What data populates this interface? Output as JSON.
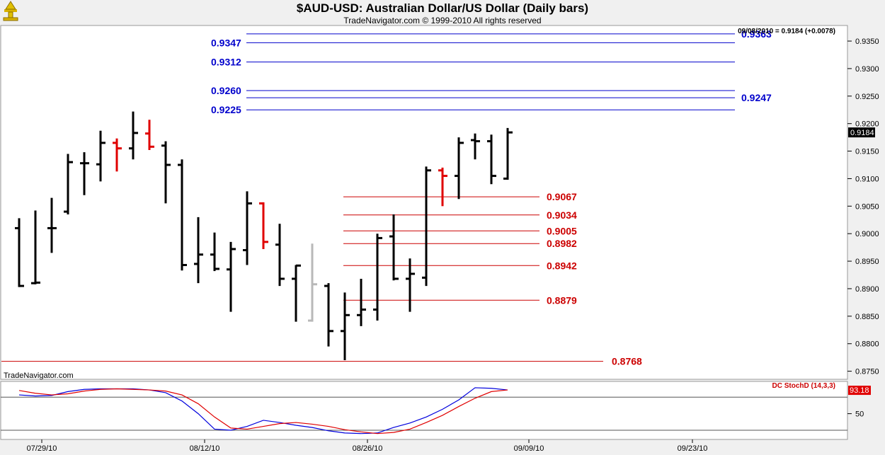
{
  "chart_data": {
    "type": "bar",
    "title": "$AUD-USD:  Australian Dollar/US Dollar  (Daily bars)",
    "subtitle": "TradeNavigator.com © 1999-2010 All rights reserved",
    "watermark": "TradeNavigator.com",
    "readout": "09/08/2010 = 0.9184 (+0.0078)",
    "last_price_label": "0.9184",
    "ylim": [
      0.8745,
      0.9375
    ],
    "yticks": [
      "0.8750",
      "0.8800",
      "0.8850",
      "0.8900",
      "0.8950",
      "0.9000",
      "0.9050",
      "0.9100",
      "0.9150",
      "0.9200",
      "0.9250",
      "0.9300",
      "0.9350"
    ],
    "xticks": [
      "07/29/10",
      "08/12/10",
      "08/26/10",
      "09/09/10",
      "09/23/10"
    ],
    "bars": [
      {
        "o": 0.901,
        "h": 0.9028,
        "l": 0.8903,
        "c": 0.8905,
        "color": "black"
      },
      {
        "o": 0.891,
        "h": 0.9042,
        "l": 0.8908,
        "c": 0.8911,
        "color": "black"
      },
      {
        "o": 0.901,
        "h": 0.9065,
        "l": 0.8965,
        "c": 0.901,
        "color": "black"
      },
      {
        "o": 0.904,
        "h": 0.9145,
        "l": 0.9035,
        "c": 0.913,
        "color": "black"
      },
      {
        "o": 0.9128,
        "h": 0.9148,
        "l": 0.907,
        "c": 0.9128,
        "color": "black"
      },
      {
        "o": 0.9126,
        "h": 0.9187,
        "l": 0.9095,
        "c": 0.9165,
        "color": "black"
      },
      {
        "o": 0.9165,
        "h": 0.9173,
        "l": 0.9113,
        "c": 0.9155,
        "color": "red"
      },
      {
        "o": 0.9155,
        "h": 0.9222,
        "l": 0.9135,
        "c": 0.9183,
        "color": "black"
      },
      {
        "o": 0.9182,
        "h": 0.9207,
        "l": 0.9152,
        "c": 0.9158,
        "color": "red"
      },
      {
        "o": 0.916,
        "h": 0.9168,
        "l": 0.9055,
        "c": 0.9125,
        "color": "black"
      },
      {
        "o": 0.9125,
        "h": 0.9135,
        "l": 0.8933,
        "c": 0.8943,
        "color": "black"
      },
      {
        "o": 0.8945,
        "h": 0.903,
        "l": 0.891,
        "c": 0.8962,
        "color": "black"
      },
      {
        "o": 0.8962,
        "h": 0.9002,
        "l": 0.8932,
        "c": 0.8936,
        "color": "black"
      },
      {
        "o": 0.8935,
        "h": 0.8985,
        "l": 0.8858,
        "c": 0.8972,
        "color": "black"
      },
      {
        "o": 0.897,
        "h": 0.9077,
        "l": 0.8943,
        "c": 0.9055,
        "color": "black"
      },
      {
        "o": 0.9055,
        "h": 0.9057,
        "l": 0.8972,
        "c": 0.8985,
        "color": "red"
      },
      {
        "o": 0.898,
        "h": 0.9018,
        "l": 0.8905,
        "c": 0.8918,
        "color": "black"
      },
      {
        "o": 0.8918,
        "h": 0.8943,
        "l": 0.884,
        "c": 0.8942,
        "color": "black"
      },
      {
        "o": 0.8842,
        "h": 0.8982,
        "l": 0.884,
        "c": 0.8908,
        "color": "gray"
      },
      {
        "o": 0.8905,
        "h": 0.891,
        "l": 0.8795,
        "c": 0.8823,
        "color": "black"
      },
      {
        "o": 0.8823,
        "h": 0.8893,
        "l": 0.877,
        "c": 0.8852,
        "color": "black"
      },
      {
        "o": 0.8852,
        "h": 0.8918,
        "l": 0.8832,
        "c": 0.8862,
        "color": "black"
      },
      {
        "o": 0.8862,
        "h": 0.9,
        "l": 0.8842,
        "c": 0.8992,
        "color": "black"
      },
      {
        "o": 0.8995,
        "h": 0.9035,
        "l": 0.8915,
        "c": 0.8918,
        "color": "black"
      },
      {
        "o": 0.8918,
        "h": 0.8955,
        "l": 0.8858,
        "c": 0.8927,
        "color": "black"
      },
      {
        "o": 0.892,
        "h": 0.9122,
        "l": 0.8905,
        "c": 0.9115,
        "color": "black"
      },
      {
        "o": 0.9115,
        "h": 0.912,
        "l": 0.905,
        "c": 0.9105,
        "color": "red"
      },
      {
        "o": 0.9105,
        "h": 0.9175,
        "l": 0.9063,
        "c": 0.9165,
        "color": "black"
      },
      {
        "o": 0.917,
        "h": 0.9182,
        "l": 0.9135,
        "c": 0.9168,
        "color": "black"
      },
      {
        "o": 0.9168,
        "h": 0.918,
        "l": 0.909,
        "c": 0.9105,
        "color": "black"
      },
      {
        "o": 0.91,
        "h": 0.9192,
        "l": 0.9098,
        "c": 0.9184,
        "color": "black"
      }
    ],
    "resistance_levels": [
      {
        "value": 0.9363,
        "label": "0.9363",
        "side": "right"
      },
      {
        "value": 0.9347,
        "label": "0.9347",
        "side": "left"
      },
      {
        "value": 0.9312,
        "label": "0.9312",
        "side": "left"
      },
      {
        "value": 0.926,
        "label": "0.9260",
        "side": "left"
      },
      {
        "value": 0.9247,
        "label": "0.9247",
        "side": "right"
      },
      {
        "value": 0.9225,
        "label": "0.9225",
        "side": "left"
      }
    ],
    "support_levels": [
      {
        "value": 0.9067,
        "label": "0.9067"
      },
      {
        "value": 0.9034,
        "label": "0.9034"
      },
      {
        "value": 0.9005,
        "label": "0.9005"
      },
      {
        "value": 0.8982,
        "label": "0.8982"
      },
      {
        "value": 0.8942,
        "label": "0.8942"
      },
      {
        "value": 0.8879,
        "label": "0.8879"
      },
      {
        "value": 0.8768,
        "label": "0.8768"
      }
    ],
    "indicator": {
      "name": "DC StochD (14,3,3)",
      "value_label": "93.18",
      "ylim": [
        0,
        100
      ],
      "yticks": [
        "50"
      ],
      "levels": [
        80,
        20
      ],
      "series": [
        {
          "color": "blue",
          "values": [
            84,
            82,
            83,
            90,
            94,
            95,
            95,
            95,
            93,
            88,
            73,
            50,
            22,
            20,
            27,
            38,
            34,
            29,
            25,
            19,
            15,
            14,
            15,
            25,
            33,
            44,
            58,
            75,
            97,
            96,
            93
          ]
        },
        {
          "color": "red",
          "values": [
            92,
            87,
            84,
            86,
            91,
            94,
            95,
            94,
            93,
            91,
            84,
            68,
            44,
            24,
            22,
            27,
            32,
            34,
            31,
            27,
            21,
            17,
            14,
            16,
            22,
            34,
            47,
            63,
            78,
            90,
            93
          ]
        }
      ]
    },
    "colors": {
      "resistance": "#0000cc",
      "support": "#cc0000",
      "background": "#ffffff",
      "frame": "#f0f0f0"
    }
  }
}
